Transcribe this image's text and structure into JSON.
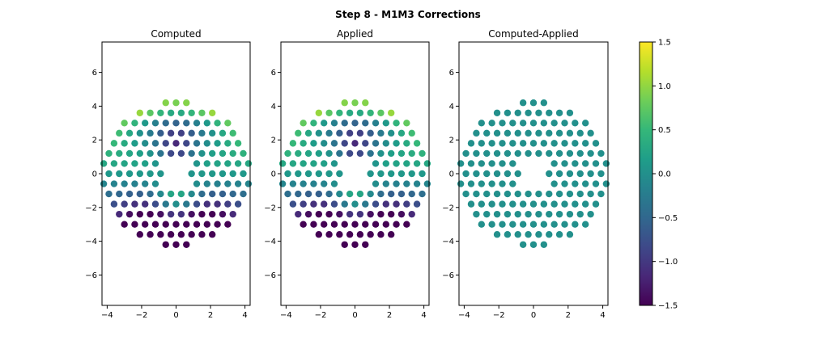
{
  "figure": {
    "title": "Step 8 - M1M3 Corrections"
  },
  "colormap": {
    "name": "viridis",
    "stops": [
      "#440154",
      "#482878",
      "#3e4989",
      "#31688e",
      "#26828e",
      "#1f9e89",
      "#35b779",
      "#6ece58",
      "#b5de2b",
      "#fde725"
    ]
  },
  "chart_data": [
    {
      "type": "scatter",
      "title": "Computed",
      "xlim": [
        -4.3,
        4.3
      ],
      "ylim": [
        -7.8,
        7.8
      ],
      "xticks": [
        -4,
        -2,
        0,
        2,
        4
      ],
      "yticks": [
        -6,
        -4,
        -2,
        0,
        2,
        4,
        6
      ],
      "tick_labels": {
        "x": [
          "−4",
          "−2",
          "0",
          "2",
          "4"
        ],
        "y": [
          "−6",
          "−4",
          "−2",
          "0",
          "2",
          "4",
          "6"
        ]
      },
      "color_scale": [
        -1.5,
        1.5
      ],
      "value_model": "computed",
      "points": "actuator_grid"
    },
    {
      "type": "scatter",
      "title": "Applied",
      "xlim": [
        -4.3,
        4.3
      ],
      "ylim": [
        -7.8,
        7.8
      ],
      "xticks": [
        -4,
        -2,
        0,
        2,
        4
      ],
      "yticks": [
        -6,
        -4,
        -2,
        0,
        2,
        4,
        6
      ],
      "tick_labels": {
        "x": [
          "−4",
          "−2",
          "0",
          "2",
          "4"
        ],
        "y": [
          "−6",
          "−4",
          "−2",
          "0",
          "2",
          "4",
          "6"
        ]
      },
      "color_scale": [
        -1.5,
        1.5
      ],
      "value_model": "computed",
      "points": "actuator_grid"
    },
    {
      "type": "scatter",
      "title": "Computed-Applied",
      "xlim": [
        -4.3,
        4.3
      ],
      "ylim": [
        -7.8,
        7.8
      ],
      "xticks": [
        -4,
        -2,
        0,
        2,
        4
      ],
      "yticks": [
        -6,
        -4,
        -2,
        0,
        2,
        4,
        6
      ],
      "tick_labels": {
        "x": [
          "−4",
          "−2",
          "0",
          "2",
          "4"
        ],
        "y": [
          "−6",
          "−4",
          "−2",
          "0",
          "2",
          "4",
          "6"
        ]
      },
      "color_scale": [
        -1.5,
        1.5
      ],
      "value_model": "zero",
      "points": "actuator_grid"
    }
  ],
  "colorbar": {
    "range": [
      -1.5,
      1.5
    ],
    "ticks": [
      1.5,
      1.0,
      0.5,
      0.0,
      -0.5,
      -1.0,
      -1.5
    ],
    "tick_labels": [
      "1.5",
      "1.0",
      "0.5",
      "0.0",
      "−0.5",
      "−1.0",
      "−1.5"
    ]
  }
}
